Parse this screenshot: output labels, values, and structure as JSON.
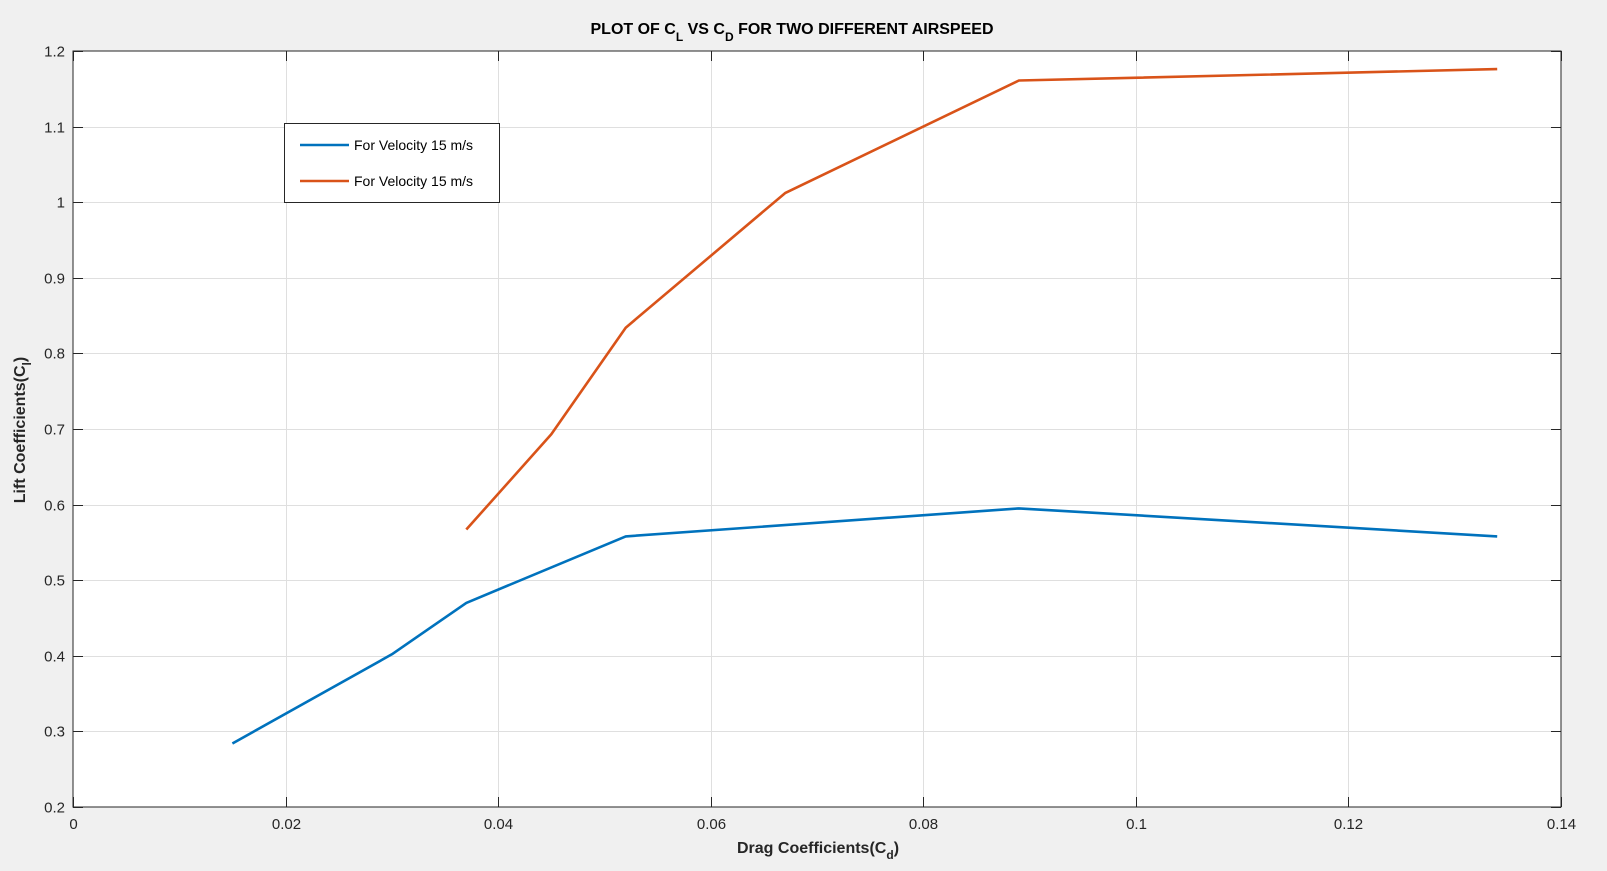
{
  "chart_data": {
    "type": "line",
    "title_parts": [
      "PLOT OF C",
      "L",
      " VS C",
      "D",
      " FOR TWO DIFFERENT AIRSPEED"
    ],
    "xlabel_parts": [
      "Drag Coefficients(C",
      "d",
      ")"
    ],
    "ylabel_parts": [
      "Lift Coefficients(C",
      "l",
      ")"
    ],
    "xlim": [
      0,
      0.14
    ],
    "ylim": [
      0.2,
      1.2
    ],
    "xticks": [
      0,
      0.02,
      0.04,
      0.06,
      0.08,
      0.1,
      0.12,
      0.14
    ],
    "xtick_labels": [
      "0",
      "0.02",
      "0.04",
      "0.06",
      "0.08",
      "0.1",
      "0.12",
      "0.14"
    ],
    "yticks": [
      0.2,
      0.3,
      0.4,
      0.5,
      0.6,
      0.7,
      0.8,
      0.9,
      1.0,
      1.1,
      1.2
    ],
    "ytick_labels": [
      "0.2",
      "0.3",
      "0.4",
      "0.5",
      "0.6",
      "0.7",
      "0.8",
      "0.9",
      "1",
      "1.1",
      "1.2"
    ],
    "grid": true,
    "legend_position": "top-left",
    "series": [
      {
        "name": "For Velocity 15 m/s",
        "color": "#0072bd",
        "x": [
          0.015,
          0.03,
          0.037,
          0.052,
          0.089,
          0.134
        ],
        "y": [
          0.284,
          0.402,
          0.47,
          0.558,
          0.595,
          0.558
        ]
      },
      {
        "name": "For Velocity 15 m/s",
        "color": "#d95319",
        "x": [
          0.037,
          0.045,
          0.052,
          0.067,
          0.089,
          0.134
        ],
        "y": [
          0.567,
          0.693,
          0.834,
          1.012,
          1.161,
          1.176
        ]
      }
    ]
  }
}
